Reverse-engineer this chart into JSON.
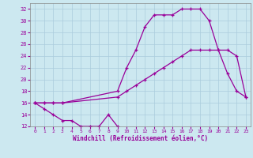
{
  "xlabel": "Windchill (Refroidissement éolien,°C)",
  "bg_color": "#cce8f0",
  "line_color": "#990099",
  "ylim": [
    12,
    33
  ],
  "xlim": [
    -0.5,
    23.5
  ],
  "yticks": [
    12,
    14,
    16,
    18,
    20,
    22,
    24,
    26,
    28,
    30,
    32
  ],
  "xticks": [
    0,
    1,
    2,
    3,
    4,
    5,
    6,
    7,
    8,
    9,
    10,
    11,
    12,
    13,
    14,
    15,
    16,
    17,
    18,
    19,
    20,
    21,
    22,
    23
  ],
  "curve1": {
    "x": [
      0,
      1,
      2,
      3,
      4,
      5,
      6,
      7,
      8,
      9
    ],
    "y": [
      16,
      15,
      14,
      13,
      13,
      12,
      12,
      12,
      14,
      12
    ]
  },
  "curve2": {
    "x": [
      0,
      1,
      2,
      3,
      9,
      10,
      11,
      12,
      13,
      14,
      15,
      16,
      17,
      18,
      19,
      20,
      21,
      22,
      23
    ],
    "y": [
      16,
      16,
      16,
      16,
      17,
      18,
      19,
      20,
      21,
      22,
      23,
      24,
      25,
      25,
      25,
      25,
      25,
      24,
      17
    ]
  },
  "curve3": {
    "x": [
      0,
      1,
      2,
      3,
      9,
      10,
      11,
      12,
      13,
      14,
      15,
      16,
      17,
      18,
      19,
      20,
      21,
      22,
      23
    ],
    "y": [
      16,
      16,
      16,
      16,
      18,
      22,
      25,
      29,
      31,
      31,
      31,
      32,
      32,
      32,
      30,
      25,
      21,
      18,
      17
    ]
  }
}
